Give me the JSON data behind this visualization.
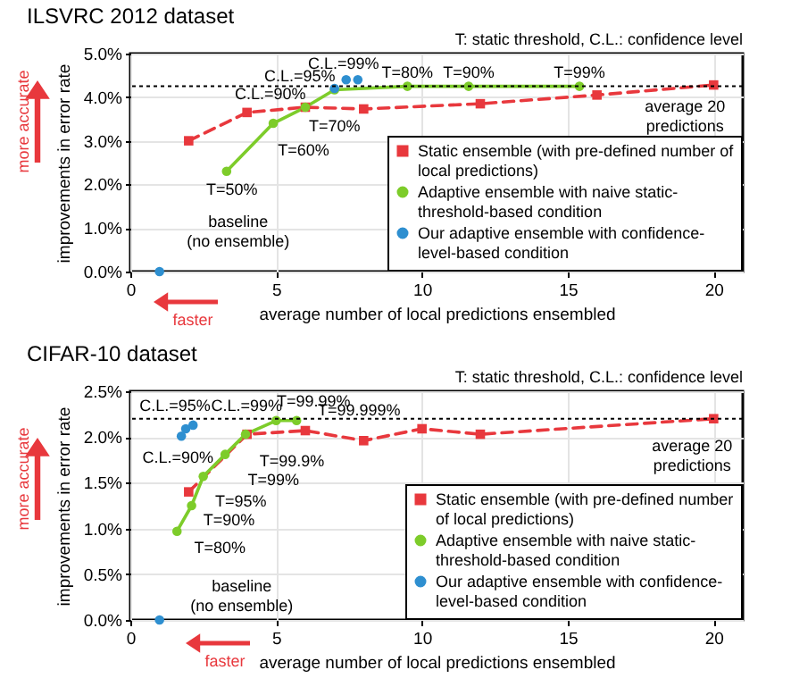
{
  "chart_data": [
    {
      "type": "line",
      "title": "ILSVRC 2012 dataset",
      "xlabel": "average number of local predictions ensembled",
      "ylabel": "improvements in error rate",
      "xlim": [
        0,
        21
      ],
      "xticks": [
        0,
        5,
        10,
        15,
        20
      ],
      "ylim": [
        0,
        5
      ],
      "yticks": [
        {
          "value": 0,
          "label": "0.0%"
        },
        {
          "value": 1,
          "label": "1.0%"
        },
        {
          "value": 2,
          "label": "2.0%"
        },
        {
          "value": 3,
          "label": "3.0%"
        },
        {
          "value": 4,
          "label": "4.0%"
        },
        {
          "value": 5,
          "label": "5.0%"
        }
      ],
      "grid": true,
      "legend": "bottom right",
      "series": [
        {
          "name": "Static ensemble (with pre-defined number of local predictions)",
          "color": "#e8383d",
          "type": "line",
          "line_style": "dashed",
          "marker": "square",
          "x": [
            2,
            4,
            6,
            8,
            12,
            16,
            20
          ],
          "values": [
            3.0,
            3.65,
            3.77,
            3.73,
            3.85,
            4.05,
            4.28
          ]
        },
        {
          "name": "Adaptive ensemble with naive static-threshold-based condition",
          "color": "#7dcc2a",
          "type": "line",
          "line_style": "solid",
          "marker": "circle",
          "x": [
            3.3,
            4.9,
            6.0,
            7.0,
            9.5,
            11.6,
            15.4
          ],
          "values": [
            2.3,
            3.4,
            3.77,
            4.17,
            4.25,
            4.25,
            4.25
          ]
        },
        {
          "name": "Our adaptive ensemble with confidence-level-based condition",
          "color": "#2e8fd0",
          "type": "scatter",
          "marker": "circle",
          "x": [
            1,
            7.0,
            7.4,
            7.8
          ],
          "values": [
            0,
            4.2,
            4.4,
            4.4
          ]
        }
      ],
      "ref_lines": [
        {
          "axis": "y",
          "value": 4.25,
          "line_style": "dotted"
        }
      ],
      "annotations": [
        {
          "text": "T=50%",
          "x": 3.3,
          "y": 2.3
        },
        {
          "text": "T=60%",
          "x": 4.9,
          "y": 3.4
        },
        {
          "text": "T=70%",
          "x": 7.0,
          "y": 4.17
        },
        {
          "text": "C.L.=90%",
          "x": 7.0,
          "y": 4.2
        },
        {
          "text": "C.L.=95%",
          "x": 7.4,
          "y": 4.4
        },
        {
          "text": "C.L.=99%",
          "x": 7.8,
          "y": 4.4
        },
        {
          "text": "T=80%",
          "x": 9.5,
          "y": 4.25
        },
        {
          "text": "T=90%",
          "x": 11.6,
          "y": 4.25
        },
        {
          "text": "T=99%",
          "x": 15.4,
          "y": 4.25
        },
        {
          "text": "baseline\n(no ensemble)",
          "x": 1,
          "y": 0
        },
        {
          "text": "average 20\npredictions",
          "x": 20,
          "y": 4.28
        },
        "T: static threshold, C.L.: confidence level",
        "more accurate",
        "faster"
      ]
    },
    {
      "type": "line",
      "title": "CIFAR-10 dataset",
      "xlabel": "average number of local predictions ensembled",
      "ylabel": "improvements in error rate",
      "xlim": [
        0,
        21
      ],
      "xticks": [
        0,
        5,
        10,
        15,
        20
      ],
      "ylim": [
        0,
        2.5
      ],
      "yticks": [
        {
          "value": 0,
          "label": "0.0%"
        },
        {
          "value": 0.5,
          "label": "0.5%"
        },
        {
          "value": 1,
          "label": "1.0%"
        },
        {
          "value": 1.5,
          "label": "1.5%"
        },
        {
          "value": 2,
          "label": "2.0%"
        },
        {
          "value": 2.5,
          "label": "2.5%"
        }
      ],
      "grid": true,
      "legend": "bottom right",
      "series": [
        {
          "name": "Static ensemble (with pre-defined number of local predictions)",
          "color": "#e8383d",
          "type": "line",
          "line_style": "dashed",
          "marker": "square",
          "x": [
            2,
            4,
            6,
            8,
            10,
            12,
            20
          ],
          "values": [
            1.4,
            2.03,
            2.07,
            1.96,
            2.09,
            2.03,
            2.2
          ]
        },
        {
          "name": "Adaptive ensemble with naive static-threshold-based condition",
          "color": "#7dcc2a",
          "type": "line",
          "line_style": "solid",
          "marker": "circle",
          "x": [
            1.6,
            2.1,
            2.5,
            3.25,
            3.95,
            5.0,
            5.7
          ],
          "values": [
            0.97,
            1.25,
            1.57,
            1.81,
            2.03,
            2.18,
            2.18
          ]
        },
        {
          "name": "Our adaptive ensemble with confidence-level-based condition",
          "color": "#2e8fd0",
          "type": "scatter",
          "marker": "circle",
          "x": [
            1,
            1.75,
            1.9,
            2.15
          ],
          "values": [
            0,
            2.01,
            2.09,
            2.13
          ]
        }
      ],
      "ref_lines": [
        {
          "axis": "y",
          "value": 2.2,
          "line_style": "dotted"
        }
      ],
      "annotations": [
        {
          "text": "C.L.=95%",
          "x": 1.9,
          "y": 2.09
        },
        {
          "text": "C.L.=99%",
          "x": 2.15,
          "y": 2.13
        },
        {
          "text": "C.L.=90%",
          "x": 1.75,
          "y": 2.01
        },
        {
          "text": "T=80%",
          "x": 1.6,
          "y": 0.97
        },
        {
          "text": "T=90%",
          "x": 2.1,
          "y": 1.25
        },
        {
          "text": "T=95%",
          "x": 2.5,
          "y": 1.57
        },
        {
          "text": "T=99%",
          "x": 3.25,
          "y": 1.81
        },
        {
          "text": "T=99.9%",
          "x": 3.95,
          "y": 2.03
        },
        {
          "text": "T=99.99%",
          "x": 5.0,
          "y": 2.18
        },
        {
          "text": "T=99.999%",
          "x": 5.7,
          "y": 2.18
        },
        {
          "text": "baseline\n(no ensemble)",
          "x": 1,
          "y": 0
        },
        {
          "text": "average 20\npredictions",
          "x": 20,
          "y": 2.2
        },
        "T: static threshold, C.L.: confidence level",
        "more accurate",
        "faster"
      ]
    }
  ]
}
